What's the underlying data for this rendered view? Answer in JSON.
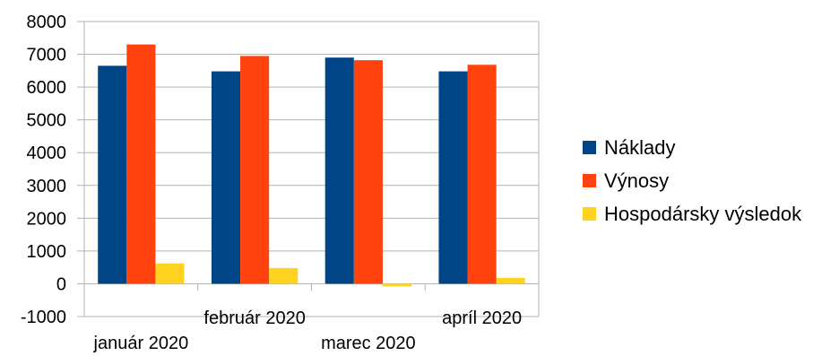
{
  "chart_data": {
    "type": "bar",
    "categories": [
      "január 2020",
      "február 2020",
      "marec 2020",
      "apríl 2020"
    ],
    "series": [
      {
        "name": "Náklady",
        "color": "#004586",
        "values": [
          6650,
          6480,
          6900,
          6480
        ]
      },
      {
        "name": "Výnosy",
        "color": "#ff420e",
        "values": [
          7300,
          6950,
          6820,
          6680
        ]
      },
      {
        "name": "Hospodársky výsledok",
        "color": "#ffd320",
        "values": [
          620,
          480,
          -80,
          180
        ]
      }
    ],
    "ylim": [
      -1000,
      8000
    ],
    "yticks": [
      -1000,
      0,
      1000,
      2000,
      3000,
      4000,
      5000,
      6000,
      7000,
      8000
    ],
    "grid": true,
    "legend": "right"
  }
}
